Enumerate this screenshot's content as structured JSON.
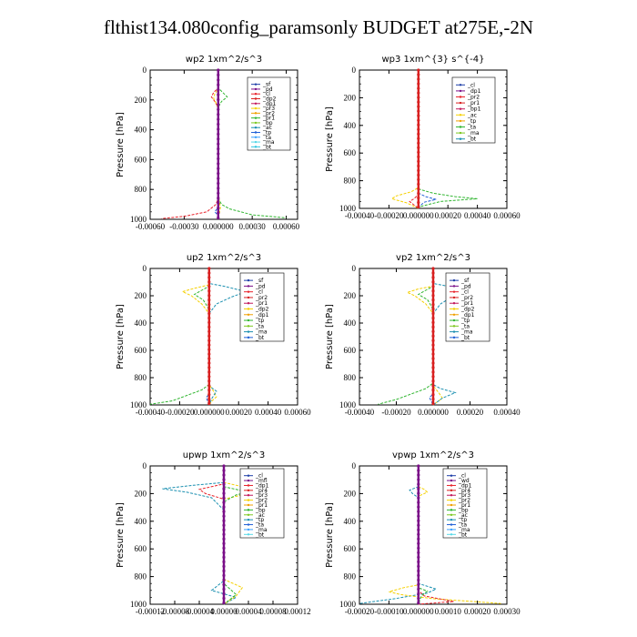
{
  "title": "flthist134.080config_paramsonly  BUDGET at275E,-2N",
  "chart_data": [
    {
      "type": "line",
      "title": "wp2   1xm^2/s^3",
      "ylabel": "Pressure [hPa]",
      "xlabel": "",
      "ylim": [
        0,
        1000
      ],
      "y_inverted": true,
      "yticks": [
        0,
        200,
        400,
        600,
        800,
        1000
      ],
      "xlim": [
        -0.0006,
        0.0007
      ],
      "xticks": [
        -0.0006,
        -0.0003,
        0.0,
        0.0003,
        0.0006
      ],
      "xtick_labels": [
        "-0.00060",
        "-0.00030",
        "0.000000",
        "0.00030",
        "0.00060"
      ],
      "legend": [
        "_sf",
        "_pd",
        "_cl",
        "_dp2",
        "_dp1",
        "_pr3",
        "_pr2",
        "_pr1",
        "_bp",
        "_ac",
        "_tp",
        "_ta",
        "_ma",
        "_bt"
      ],
      "series": [
        {
          "name": "_dp1",
          "color": "#e8222a",
          "x": [
            0,
            0,
            -4e-05,
            -6e-05,
            -3e-05,
            0,
            0,
            0,
            -2e-05,
            -0.0001,
            -0.0003,
            -0.0005
          ],
          "y": [
            0,
            120,
            150,
            180,
            210,
            250,
            400,
            860,
            900,
            950,
            980,
            995
          ]
        },
        {
          "name": "_pr3",
          "color": "#f5d000",
          "x": [
            0,
            0,
            -3e-05,
            -4e-05,
            -2e-05,
            0,
            0,
            1e-05,
            2e-05,
            1e-05,
            0
          ],
          "y": [
            0,
            130,
            160,
            190,
            220,
            260,
            800,
            880,
            920,
            960,
            1000
          ]
        },
        {
          "name": "_pr1",
          "color": "#2fb52f",
          "x": [
            0,
            0,
            4e-05,
            8e-05,
            3e-05,
            0,
            0,
            3e-05,
            0.0001,
            0.0003,
            0.0006
          ],
          "y": [
            0,
            120,
            150,
            180,
            210,
            250,
            860,
            900,
            930,
            970,
            990
          ]
        },
        {
          "name": "_tp",
          "color": "#1f5fd6",
          "x": [
            0,
            0,
            0,
            -3e-05,
            0,
            0
          ],
          "y": [
            0,
            850,
            920,
            950,
            975,
            1000
          ]
        },
        {
          "name": "_bt",
          "color": "#7a0f88",
          "x": [
            0,
            0
          ],
          "y": [
            0,
            1000
          ]
        }
      ]
    },
    {
      "type": "line",
      "title": "wp3   1xm^{3} s^{-4}",
      "ylabel": "Pressure [hPa]",
      "xlabel": "",
      "ylim": [
        0,
        1000
      ],
      "y_inverted": true,
      "yticks": [
        0,
        200,
        400,
        600,
        800,
        1000
      ],
      "xlim": [
        -0.0004,
        0.0006
      ],
      "xticks": [
        -0.0004,
        -0.0002,
        0.0,
        0.0002,
        0.0004,
        0.0006
      ],
      "xtick_labels": [
        "-0.00040",
        "-0.00020",
        "0.000000",
        "0.00020",
        "0.00040",
        "0.00060"
      ],
      "legend": [
        "_cl",
        "_dp1",
        "_pr2",
        "_pr1",
        "_bp1",
        "_ac",
        "_tp",
        "_ta",
        "_ma",
        "_bt"
      ],
      "series": [
        {
          "name": "_pr2",
          "color": "#f5d000",
          "x": [
            0,
            0,
            -5e-05,
            -0.00015,
            -0.00018,
            -8e-05,
            0
          ],
          "y": [
            0,
            850,
            880,
            910,
            930,
            960,
            1000
          ]
        },
        {
          "name": "_pr1",
          "color": "#2fb52f",
          "x": [
            0,
            0,
            0.0001,
            0.00025,
            0.0004,
            0.00015,
            0
          ],
          "y": [
            0,
            860,
            890,
            915,
            930,
            950,
            990
          ]
        },
        {
          "name": "_ac",
          "color": "#1f5fd6",
          "x": [
            0,
            0,
            5e-05,
            0.00012,
            4e-05,
            0
          ],
          "y": [
            0,
            890,
            915,
            935,
            955,
            990
          ]
        },
        {
          "name": "_dp1",
          "color": "#e8222a",
          "x": [
            0,
            0,
            -3e-05,
            -6e-05,
            0
          ],
          "y": [
            0,
            900,
            930,
            950,
            1000
          ]
        },
        {
          "name": "_bt",
          "color": "#d82020",
          "x": [
            0,
            0
          ],
          "y": [
            0,
            1000
          ]
        }
      ]
    },
    {
      "type": "line",
      "title": "up2   1xm^2/s^3",
      "ylabel": "Pressure [hPa]",
      "xlabel": "",
      "ylim": [
        0,
        1000
      ],
      "y_inverted": true,
      "yticks": [
        0,
        200,
        400,
        600,
        800,
        1000
      ],
      "xlim": [
        -0.0004,
        0.0006
      ],
      "xticks": [
        -0.0004,
        -0.0002,
        0.0,
        0.0002,
        0.0004,
        0.0006
      ],
      "xtick_labels": [
        "-0.00040",
        "-0.00020",
        "0.000000",
        "0.00020",
        "0.00040",
        "0.00060"
      ],
      "legend": [
        "_sf",
        "_pd",
        "_cl",
        "_pr2",
        "_pr1",
        "_dp2",
        "_dp1",
        "_tp",
        "_ta",
        "_ma",
        "_bt"
      ],
      "series": [
        {
          "name": "_pr2",
          "color": "#f5d000",
          "x": [
            0,
            0,
            -0.0001,
            -0.00018,
            -0.00012,
            -5e-05,
            0,
            0,
            3e-05,
            5e-05,
            2e-05,
            0
          ],
          "y": [
            0,
            120,
            145,
            170,
            200,
            260,
            330,
            850,
            900,
            940,
            970,
            1000
          ]
        },
        {
          "name": "_tp",
          "color": "#1a8fb0",
          "x": [
            0,
            0,
            0.0001,
            0.00025,
            0.00015,
            5e-05,
            0,
            0,
            5e-05,
            2e-05,
            0
          ],
          "y": [
            0,
            110,
            130,
            170,
            210,
            260,
            330,
            860,
            900,
            950,
            1000
          ]
        },
        {
          "name": "_pr1",
          "color": "#2fb52f",
          "x": [
            0,
            0,
            -5e-05,
            -0.0001,
            -4e-05,
            0,
            0,
            -5e-05,
            -0.00015,
            -0.00025,
            -0.0004
          ],
          "y": [
            0,
            130,
            160,
            190,
            230,
            300,
            850,
            890,
            930,
            970,
            995
          ]
        },
        {
          "name": "_dp1",
          "color": "#1f5fd6",
          "x": [
            0,
            0,
            -2e-05,
            0
          ],
          "y": [
            0,
            920,
            945,
            1000
          ]
        },
        {
          "name": "_bt",
          "color": "#d82020",
          "x": [
            0,
            0
          ],
          "y": [
            0,
            1000
          ]
        }
      ]
    },
    {
      "type": "line",
      "title": "vp2   1xm^2/s^3",
      "ylabel": "Pressure [hPa]",
      "xlabel": "",
      "ylim": [
        0,
        1000
      ],
      "y_inverted": true,
      "yticks": [
        0,
        200,
        400,
        600,
        800,
        1000
      ],
      "xlim": [
        -0.0004,
        0.0004
      ],
      "xticks": [
        -0.0004,
        -0.0002,
        0.0,
        0.0002,
        0.0004
      ],
      "xtick_labels": [
        "-0.00040",
        "-0.00020",
        "0.000000",
        "0.00020",
        "0.00040"
      ],
      "legend": [
        "_sf",
        "_pd",
        "_cl",
        "_pr2",
        "_pr1",
        "_dp2",
        "_dp1",
        "_tp",
        "_ta",
        "_ma",
        "_bt"
      ],
      "series": [
        {
          "name": "_pr2",
          "color": "#f5d000",
          "x": [
            0,
            0,
            -8e-05,
            -0.00014,
            -0.0001,
            -4e-05,
            0,
            0,
            3e-05,
            5e-05,
            0
          ],
          "y": [
            0,
            130,
            150,
            175,
            200,
            260,
            330,
            860,
            910,
            950,
            1000
          ]
        },
        {
          "name": "_tp",
          "color": "#1a8fb0",
          "x": [
            0,
            0,
            8e-05,
            0.00015,
            0.0001,
            4e-05,
            0,
            0,
            4e-05,
            0.00012,
            5e-05,
            0
          ],
          "y": [
            0,
            110,
            130,
            170,
            210,
            260,
            330,
            850,
            880,
            910,
            950,
            1000
          ]
        },
        {
          "name": "_pr1",
          "color": "#2fb52f",
          "x": [
            0,
            0,
            -4e-05,
            -8e-05,
            -3e-05,
            0,
            0,
            -4e-05,
            -0.00012,
            -0.0002,
            -0.0003
          ],
          "y": [
            0,
            130,
            160,
            190,
            230,
            300,
            840,
            880,
            920,
            960,
            995
          ]
        },
        {
          "name": "_dp1",
          "color": "#1f5fd6",
          "x": [
            0,
            0,
            -2e-05,
            0
          ],
          "y": [
            0,
            920,
            945,
            1000
          ]
        },
        {
          "name": "_bt",
          "color": "#d82020",
          "x": [
            0,
            0
          ],
          "y": [
            0,
            1000
          ]
        }
      ]
    },
    {
      "type": "line",
      "title": "upwp   1xm^2/s^3",
      "ylabel": "Pressure [hPa]",
      "xlabel": "",
      "ylim": [
        0,
        1000
      ],
      "y_inverted": true,
      "yticks": [
        0,
        200,
        400,
        600,
        800,
        1000
      ],
      "xlim": [
        -0.00012,
        0.00012
      ],
      "xticks": [
        -0.00012,
        -8e-05,
        -4e-05,
        0.0,
        4e-05,
        8e-05,
        0.00012
      ],
      "xtick_labels": [
        "-0.00012",
        "-0.00008",
        "-0.00004",
        "0.00000",
        "0.00004",
        "0.00008",
        "0.00012"
      ],
      "legend": [
        "_cl",
        "_mfl",
        "_dp1",
        "_pr4",
        "_pr3",
        "_pr2",
        "_pr1",
        "_bp",
        "_ac",
        "_tp",
        "_ta",
        "_ma",
        "_bt"
      ],
      "series": [
        {
          "name": "_tp",
          "color": "#1a8fb0",
          "x": [
            0,
            0,
            -5e-05,
            -0.0001,
            -6e-05,
            -2e-05,
            0,
            0,
            -2e-05,
            2e-05,
            0
          ],
          "y": [
            0,
            120,
            140,
            165,
            190,
            230,
            320,
            830,
            900,
            950,
            1000
          ]
        },
        {
          "name": "_dp1",
          "color": "#e8222a",
          "x": [
            0,
            0,
            -2e-05,
            -4e-05,
            -3e-05,
            0,
            0,
            0
          ],
          "y": [
            0,
            130,
            150,
            170,
            200,
            240,
            320,
            1000
          ]
        },
        {
          "name": "_pr2",
          "color": "#f5d000",
          "x": [
            0,
            0,
            3e-05,
            6e-05,
            4e-05,
            0,
            0,
            3e-05,
            2e-05,
            0
          ],
          "y": [
            0,
            120,
            150,
            170,
            200,
            240,
            820,
            880,
            940,
            1000
          ]
        },
        {
          "name": "_pr1",
          "color": "#2fb52f",
          "x": [
            0,
            0,
            2e-05,
            4e-05,
            2e-05,
            0,
            0,
            2e-05,
            0
          ],
          "y": [
            0,
            150,
            170,
            190,
            210,
            260,
            850,
            930,
            1000
          ]
        },
        {
          "name": "_bt",
          "color": "#7a0f88",
          "x": [
            0,
            0
          ],
          "y": [
            0,
            1000
          ]
        }
      ]
    },
    {
      "type": "line",
      "title": "vpwp   1xm^2/s^3",
      "ylabel": "Pressure [hPa]",
      "xlabel": "",
      "ylim": [
        0,
        1000
      ],
      "y_inverted": true,
      "yticks": [
        0,
        200,
        400,
        600,
        800,
        1000
      ],
      "xlim": [
        -0.0002,
        0.0003
      ],
      "xticks": [
        -0.0002,
        -0.0001,
        0.0,
        0.0001,
        0.0002,
        0.0003
      ],
      "xtick_labels": [
        "-0.00020",
        "-0.00010",
        "0.000000",
        "0.00010",
        "0.00020",
        "0.00030"
      ],
      "legend": [
        "_cl",
        "_wd",
        "_dp1",
        "_pr4",
        "_pr3",
        "_pr2",
        "_pr1",
        "_bp",
        "_ac",
        "_tp",
        "_ta",
        "_ma",
        "_bt"
      ],
      "series": [
        {
          "name": "_tp",
          "color": "#1a8fb0",
          "x": [
            0,
            0,
            -3e-05,
            -2e-05,
            0,
            0,
            6e-05,
            3e-05,
            -8e-05,
            -0.0002
          ],
          "y": [
            0,
            150,
            175,
            200,
            230,
            850,
            890,
            920,
            960,
            995
          ]
        },
        {
          "name": "_pr2",
          "color": "#f5d000",
          "x": [
            0,
            0,
            2e-05,
            3e-05,
            0,
            0,
            -5e-05,
            -0.0001,
            -6e-05,
            5e-05,
            0.00028
          ],
          "y": [
            0,
            150,
            170,
            190,
            220,
            860,
            880,
            910,
            930,
            960,
            995
          ]
        },
        {
          "name": "_pr1",
          "color": "#2fb52f",
          "x": [
            0,
            0,
            3e-05,
            1e-05,
            0
          ],
          "y": [
            0,
            880,
            905,
            940,
            1000
          ]
        },
        {
          "name": "_dp1",
          "color": "#e8222a",
          "x": [
            0,
            0,
            2e-05,
            0.00012,
            0
          ],
          "y": [
            0,
            900,
            940,
            980,
            1000
          ]
        },
        {
          "name": "_bt",
          "color": "#7a0f88",
          "x": [
            0,
            0
          ],
          "y": [
            0,
            1000
          ]
        }
      ]
    }
  ]
}
